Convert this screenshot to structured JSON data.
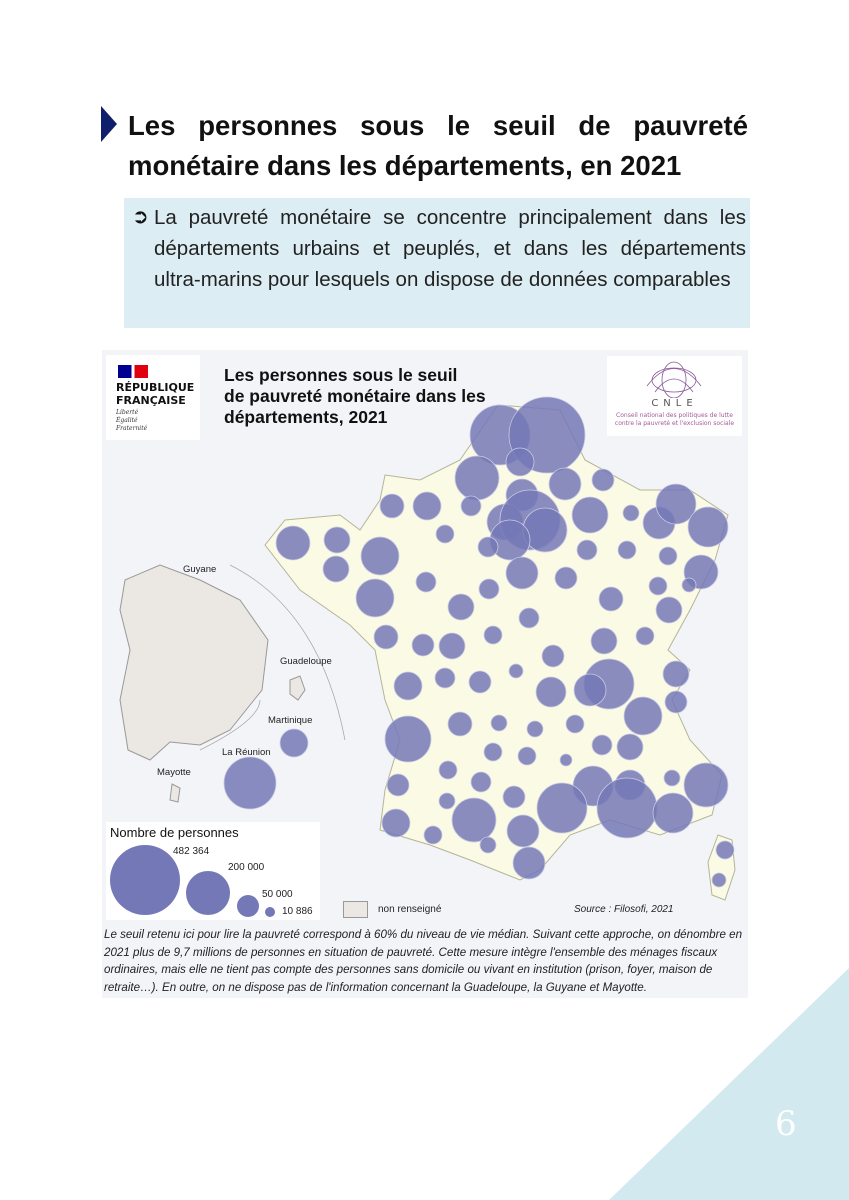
{
  "heading": {
    "line1": "Les personnes sous le seuil de pauvreté",
    "line2": "monétaire dans les départements, en 2021"
  },
  "callout": {
    "icon": "arrow-circle-right-icon",
    "text": "La pauvreté monétaire se concentre principalement dans les départements urbains et peuplés, et dans les départements ultra-marins pour lesquels on dispose de données comparables"
  },
  "map": {
    "logo_rf": {
      "line1": "RÉPUBLIQUE",
      "line2": "FRANÇAISE",
      "motto": [
        "Liberté",
        "Égalité",
        "Fraternité"
      ]
    },
    "title": [
      "Les personnes sous le seuil",
      "de pauvreté monétaire dans les",
      "départements, 2021"
    ],
    "cnle": {
      "name": "CNLE",
      "subtitle": "Conseil national des politiques de lutte contre la pauvreté et l'exclusion sociale"
    },
    "insets": {
      "guyane": "Guyane",
      "guadeloupe": "Guadeloupe",
      "martinique": "Martinique",
      "reunion": "La Réunion",
      "mayotte": "Mayotte"
    },
    "legend": {
      "title": "Nombre de personnes",
      "values": [
        "482 364",
        "200 000",
        "50 000",
        "10 886"
      ],
      "not_available": "non renseigné"
    },
    "source": "Source : Filosofi, 2021",
    "bubble_color": "#7478b6",
    "land_color": "#fbfae4",
    "footnote": "Le seuil retenu ici pour lire la pauvreté correspond à 60% du niveau de vie médian. Suivant cette approche, on dénombre en 2021 plus de 9,7 millions de personnes en situation de pauvreté. Cette mesure intègre l'ensemble des ménages fiscaux ordinaires, mais elle ne tient pas compte des personnes sans domicile ou vivant en institution (prison, foyer, maison de retraite…). En outre, on ne dispose pas de l'information concernant la Guadeloupe, la Guyane et Mayotte."
  },
  "page_number": "6"
}
